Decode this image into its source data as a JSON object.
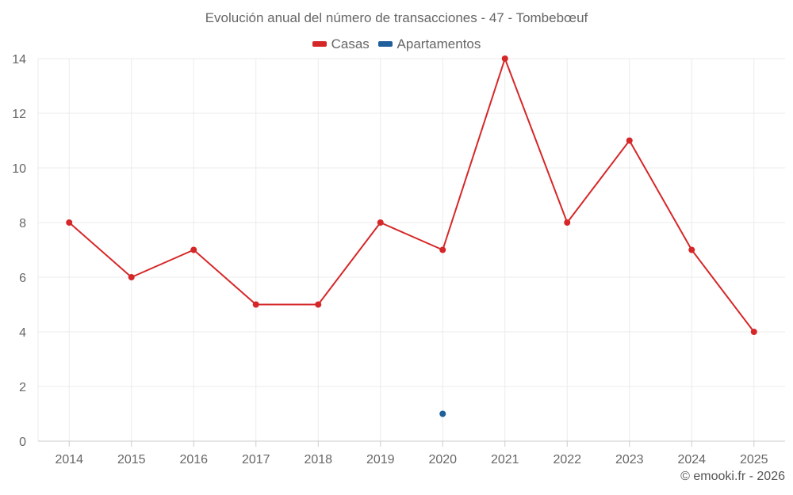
{
  "chart_data": {
    "type": "line",
    "title": "Evolución anual del número de transacciones - 47 - Tombebœuf",
    "categories": [
      "2014",
      "2015",
      "2016",
      "2017",
      "2018",
      "2019",
      "2020",
      "2021",
      "2022",
      "2023",
      "2024",
      "2025"
    ],
    "series": [
      {
        "name": "Casas",
        "color": "#d62728",
        "values": [
          8,
          6,
          7,
          5,
          5,
          8,
          7,
          14,
          8,
          11,
          7,
          4
        ]
      },
      {
        "name": "Apartamentos",
        "color": "#1f5f9b",
        "values": [
          null,
          null,
          null,
          null,
          null,
          null,
          1,
          null,
          null,
          null,
          null,
          null
        ]
      }
    ],
    "yticks": [
      "0",
      "2",
      "4",
      "6",
      "8",
      "10",
      "12",
      "14"
    ],
    "ylim": [
      0,
      14
    ],
    "xlabel": "",
    "ylabel": "",
    "grid": true,
    "legend_position": "top-center"
  },
  "credit": "© emooki.fr - 2026"
}
